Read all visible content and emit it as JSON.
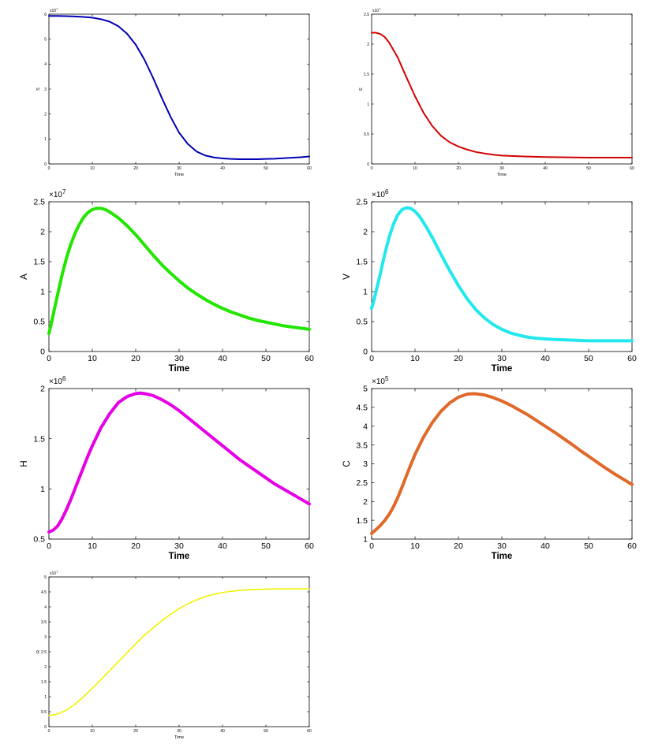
{
  "chart_data": [
    {
      "type": "line",
      "title": "",
      "xlabel": "Time",
      "ylabel": "S",
      "xlim": [
        0,
        60
      ],
      "xticks": [
        0,
        10,
        20,
        30,
        40,
        50,
        60
      ],
      "ylim": [
        0,
        6
      ],
      "yticks": [
        0,
        1,
        2,
        3,
        4,
        5,
        6
      ],
      "exponent": "×10",
      "exponent_power": "7",
      "grid": false,
      "color": "#0000b4",
      "series": [
        {
          "x": [
            0,
            2,
            4,
            6,
            8,
            10,
            12,
            14,
            16,
            18,
            20,
            22,
            24,
            26,
            28,
            30,
            32,
            34,
            36,
            38,
            40,
            42,
            44,
            46,
            48,
            50,
            52,
            54,
            56,
            58,
            60
          ],
          "y": [
            5.93,
            5.93,
            5.92,
            5.91,
            5.89,
            5.86,
            5.8,
            5.7,
            5.52,
            5.22,
            4.78,
            4.18,
            3.45,
            2.65,
            1.9,
            1.25,
            0.8,
            0.5,
            0.34,
            0.26,
            0.22,
            0.2,
            0.19,
            0.19,
            0.19,
            0.2,
            0.21,
            0.23,
            0.25,
            0.27,
            0.3
          ]
        }
      ]
    },
    {
      "type": "line",
      "title": "",
      "xlabel": "Time",
      "ylabel": "E",
      "xlim": [
        0,
        60
      ],
      "xticks": [
        0,
        10,
        20,
        30,
        40,
        50,
        60
      ],
      "ylim": [
        0,
        2.5
      ],
      "yticks": [
        0,
        0.5,
        1,
        1.5,
        2,
        2.5
      ],
      "exponent": "×10",
      "exponent_power": "7",
      "grid": false,
      "color": "#d40000",
      "series": [
        {
          "x": [
            0,
            1,
            2,
            3,
            4,
            6,
            8,
            10,
            12,
            14,
            16,
            18,
            20,
            22,
            24,
            26,
            28,
            30,
            35,
            40,
            45,
            50,
            55,
            60
          ],
          "y": [
            2.19,
            2.19,
            2.17,
            2.12,
            2.03,
            1.78,
            1.45,
            1.13,
            0.85,
            0.63,
            0.47,
            0.36,
            0.29,
            0.24,
            0.2,
            0.175,
            0.155,
            0.14,
            0.125,
            0.115,
            0.11,
            0.105,
            0.105,
            0.105
          ]
        }
      ]
    },
    {
      "type": "line",
      "title": "",
      "xlabel": "Time",
      "ylabel": "A",
      "xlim": [
        0,
        60
      ],
      "xticks": [
        0,
        10,
        20,
        30,
        40,
        50,
        60
      ],
      "ylim": [
        0,
        2.5
      ],
      "yticks": [
        0,
        0.5,
        1,
        1.5,
        2,
        2.5
      ],
      "exponent": "×10",
      "exponent_power": "7",
      "grid": false,
      "color": "#22e600",
      "series": [
        {
          "x": [
            0,
            0.5,
            1,
            2,
            3,
            4,
            5,
            6,
            7,
            8,
            9,
            10,
            11,
            12,
            13,
            14,
            16,
            18,
            20,
            22,
            24,
            26,
            28,
            30,
            32,
            34,
            36,
            38,
            40,
            42,
            44,
            46,
            48,
            50,
            52,
            54,
            56,
            58,
            60
          ],
          "y": [
            0.3,
            0.45,
            0.62,
            0.95,
            1.27,
            1.55,
            1.78,
            1.97,
            2.12,
            2.24,
            2.32,
            2.37,
            2.39,
            2.39,
            2.37,
            2.33,
            2.23,
            2.1,
            1.95,
            1.78,
            1.61,
            1.45,
            1.31,
            1.18,
            1.06,
            0.96,
            0.87,
            0.79,
            0.72,
            0.66,
            0.61,
            0.56,
            0.52,
            0.49,
            0.46,
            0.43,
            0.41,
            0.39,
            0.37
          ]
        }
      ]
    },
    {
      "type": "line",
      "title": "",
      "xlabel": "Time",
      "ylabel": "V",
      "xlim": [
        0,
        60
      ],
      "xticks": [
        0,
        10,
        20,
        30,
        40,
        50,
        60
      ],
      "ylim": [
        0,
        2.5
      ],
      "yticks": [
        0,
        0.5,
        1,
        1.5,
        2,
        2.5
      ],
      "exponent": "×10",
      "exponent_power": "6",
      "grid": false,
      "color": "#22e8ee",
      "series": [
        {
          "x": [
            0,
            0.5,
            1,
            2,
            3,
            4,
            5,
            6,
            7,
            8,
            9,
            10,
            11,
            12,
            13,
            14,
            16,
            18,
            20,
            22,
            24,
            26,
            28,
            30,
            32,
            34,
            36,
            38,
            40,
            42,
            44,
            46,
            48,
            50,
            52,
            54,
            56,
            58,
            60
          ],
          "y": [
            0.72,
            0.85,
            1.0,
            1.3,
            1.62,
            1.9,
            2.12,
            2.28,
            2.37,
            2.4,
            2.39,
            2.34,
            2.26,
            2.15,
            2.03,
            1.9,
            1.62,
            1.35,
            1.1,
            0.88,
            0.7,
            0.56,
            0.45,
            0.37,
            0.31,
            0.27,
            0.24,
            0.22,
            0.21,
            0.2,
            0.195,
            0.19,
            0.185,
            0.18,
            0.18,
            0.18,
            0.18,
            0.18,
            0.18
          ]
        }
      ]
    },
    {
      "type": "line",
      "title": "",
      "xlabel": "Time",
      "ylabel": "H",
      "xlim": [
        0,
        60
      ],
      "xticks": [
        0,
        10,
        20,
        30,
        40,
        50,
        60
      ],
      "ylim": [
        0.5,
        2
      ],
      "yticks": [
        0.5,
        1,
        1.5,
        2
      ],
      "exponent": "×10",
      "exponent_power": "6",
      "grid": false,
      "color": "#e600e6",
      "series": [
        {
          "x": [
            0,
            1,
            2,
            3,
            4,
            5,
            6,
            7,
            8,
            9,
            10,
            11,
            12,
            14,
            16,
            18,
            20,
            21,
            22,
            24,
            26,
            28,
            30,
            32,
            34,
            36,
            38,
            40,
            42,
            44,
            46,
            48,
            50,
            52,
            54,
            56,
            58,
            60
          ],
          "y": [
            0.57,
            0.59,
            0.63,
            0.7,
            0.79,
            0.89,
            1.0,
            1.11,
            1.22,
            1.33,
            1.43,
            1.52,
            1.61,
            1.75,
            1.86,
            1.92,
            1.95,
            1.955,
            1.95,
            1.93,
            1.89,
            1.84,
            1.78,
            1.71,
            1.64,
            1.57,
            1.5,
            1.43,
            1.36,
            1.29,
            1.23,
            1.17,
            1.11,
            1.05,
            1.0,
            0.95,
            0.9,
            0.85
          ]
        }
      ]
    },
    {
      "type": "line",
      "title": "",
      "xlabel": "Time",
      "ylabel": "C",
      "xlim": [
        0,
        60
      ],
      "xticks": [
        0,
        10,
        20,
        30,
        40,
        50,
        60
      ],
      "ylim": [
        1,
        5
      ],
      "yticks": [
        1,
        1.5,
        2,
        2.5,
        3,
        3.5,
        4,
        4.5,
        5
      ],
      "exponent": "×10",
      "exponent_power": "5",
      "grid": false,
      "color": "#e0692a",
      "series": [
        {
          "x": [
            0,
            1,
            2,
            3,
            4,
            5,
            6,
            7,
            8,
            9,
            10,
            12,
            14,
            16,
            18,
            20,
            22,
            23,
            24,
            26,
            28,
            30,
            32,
            34,
            36,
            38,
            40,
            42,
            44,
            46,
            48,
            50,
            52,
            54,
            56,
            58,
            60
          ],
          "y": [
            1.15,
            1.25,
            1.36,
            1.49,
            1.65,
            1.85,
            2.1,
            2.38,
            2.68,
            2.97,
            3.25,
            3.72,
            4.1,
            4.4,
            4.62,
            4.77,
            4.85,
            4.86,
            4.86,
            4.83,
            4.76,
            4.67,
            4.56,
            4.43,
            4.3,
            4.15,
            4.0,
            3.85,
            3.69,
            3.53,
            3.36,
            3.2,
            3.04,
            2.88,
            2.73,
            2.59,
            2.45
          ]
        }
      ]
    },
    {
      "type": "line",
      "title": "",
      "xlabel": "Time",
      "ylabel": "R",
      "xlim": [
        0,
        60
      ],
      "xticks": [
        0,
        10,
        20,
        30,
        40,
        50,
        60
      ],
      "ylim": [
        0,
        5
      ],
      "yticks": [
        0,
        0.5,
        1,
        1.5,
        2,
        2.5,
        3,
        3.5,
        4,
        4.5,
        5
      ],
      "exponent": "×10",
      "exponent_power": "7",
      "grid": false,
      "color": "#f2f200",
      "series": [
        {
          "x": [
            0,
            2,
            4,
            6,
            8,
            10,
            12,
            14,
            16,
            18,
            20,
            22,
            24,
            26,
            28,
            30,
            32,
            34,
            36,
            38,
            40,
            42,
            44,
            46,
            48,
            50,
            52,
            54,
            56,
            58,
            60
          ],
          "y": [
            0.37,
            0.42,
            0.55,
            0.75,
            1.0,
            1.28,
            1.57,
            1.87,
            2.17,
            2.47,
            2.77,
            3.05,
            3.3,
            3.54,
            3.75,
            3.94,
            4.1,
            4.23,
            4.34,
            4.42,
            4.48,
            4.52,
            4.55,
            4.57,
            4.58,
            4.59,
            4.6,
            4.6,
            4.6,
            4.6,
            4.6
          ]
        }
      ]
    }
  ]
}
